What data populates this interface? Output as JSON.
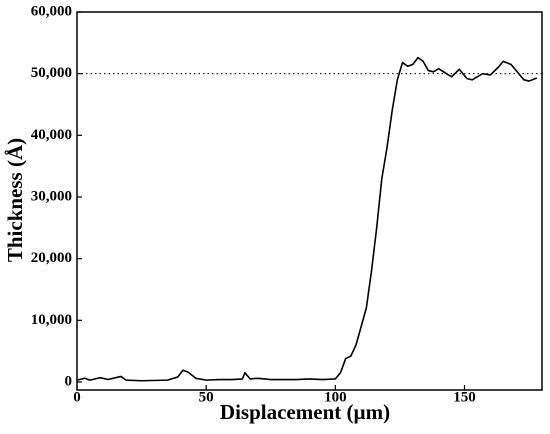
{
  "chart_data": {
    "type": "line",
    "x_label": "Displacement (µm)",
    "y_label": "Thickness (Å)",
    "x": [
      0,
      3,
      5,
      9,
      12,
      17,
      19,
      25,
      35,
      39,
      41,
      43,
      46,
      50,
      55,
      60,
      64,
      65,
      67,
      70,
      75,
      85,
      90,
      95,
      100,
      102,
      104,
      106,
      108,
      110,
      112,
      114,
      116,
      118,
      120,
      122,
      124,
      126,
      128,
      130,
      132,
      134,
      136,
      138,
      140,
      143,
      145,
      148,
      151,
      153,
      155,
      157,
      160,
      163,
      165,
      168,
      170,
      173,
      175,
      178
    ],
    "series": [
      {
        "color": "#000000",
        "values": [
          300,
          600,
          300,
          700,
          400,
          900,
          300,
          200,
          300,
          800,
          1900,
          1600,
          600,
          300,
          400,
          400,
          500,
          1500,
          500,
          600,
          400,
          400,
          500,
          400,
          500,
          1500,
          3800,
          4200,
          6000,
          9000,
          12000,
          18000,
          25000,
          33000,
          38000,
          44000,
          49000,
          51800,
          51200,
          51500,
          52600,
          52000,
          50500,
          50300,
          50800,
          50000,
          49500,
          50700,
          49200,
          49000,
          49500,
          50000,
          49800,
          51000,
          52000,
          51500,
          50500,
          49000,
          48800,
          49300
        ]
      }
    ],
    "xlim": [
      0,
      180
    ],
    "xticks": [
      0,
      50,
      100,
      150
    ],
    "ylim": [
      -1300,
      60000
    ],
    "yticks": [
      0,
      {
        "value": 10000,
        "label": "10,000"
      },
      {
        "value": 20000,
        "label": "20,000"
      },
      {
        "value": 30000,
        "label": "30,000"
      },
      {
        "value": 40000,
        "label": "40,000"
      },
      {
        "value": 50000,
        "label": "50,000"
      },
      {
        "value": 60000,
        "label": "60,000"
      }
    ],
    "reference_line": 50000,
    "grid": false
  }
}
